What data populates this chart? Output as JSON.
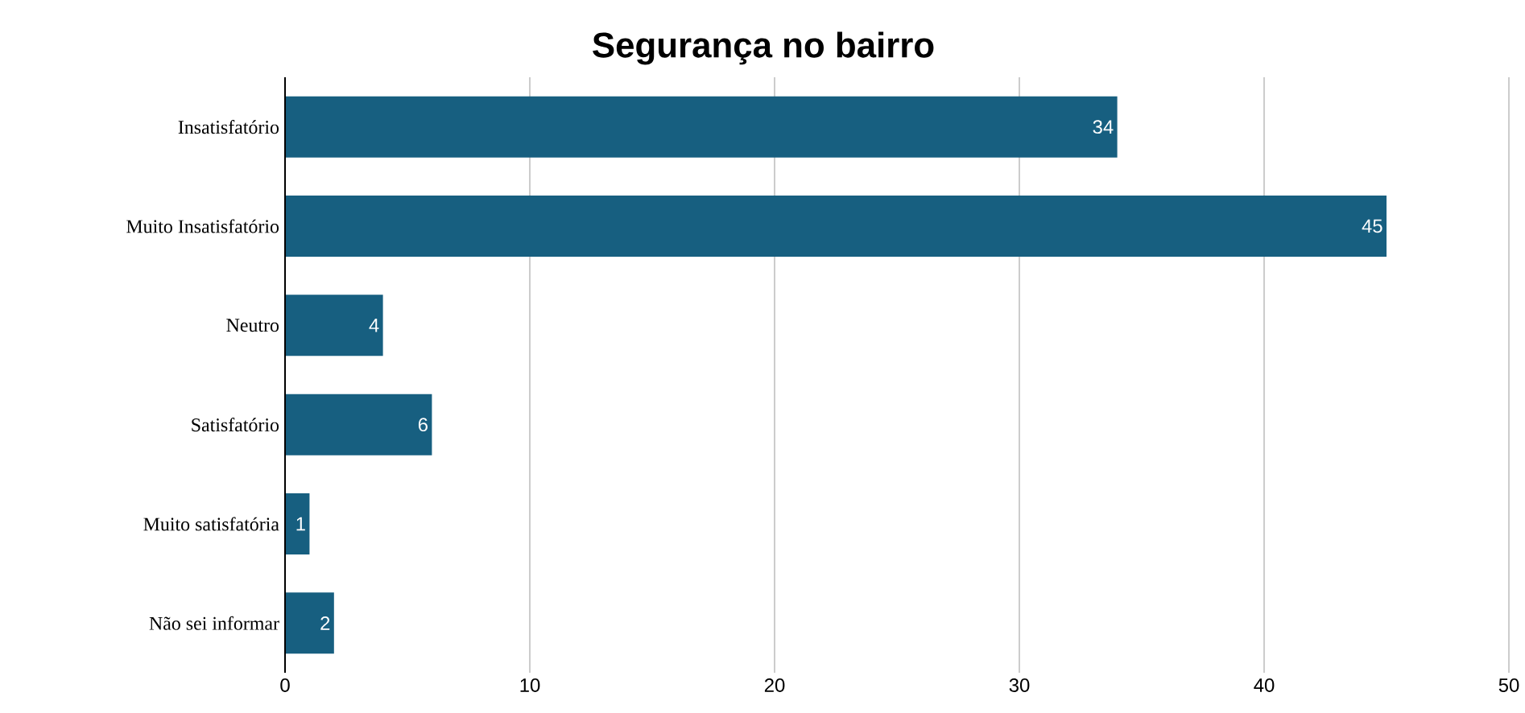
{
  "chart_data": {
    "type": "bar",
    "orientation": "horizontal",
    "title": "Segurança no bairro",
    "categories": [
      "Insatisfatório",
      "Muito Insatisfatório",
      "Neutro",
      "Satisfatório",
      "Muito satisfatória",
      "Não sei informar"
    ],
    "values": [
      34,
      45,
      4,
      6,
      1,
      2
    ],
    "color": "#175f80",
    "xlim": [
      0,
      50
    ],
    "xticks": [
      0,
      10,
      20,
      30,
      40,
      50
    ],
    "grid": "x",
    "data_labels": true
  }
}
